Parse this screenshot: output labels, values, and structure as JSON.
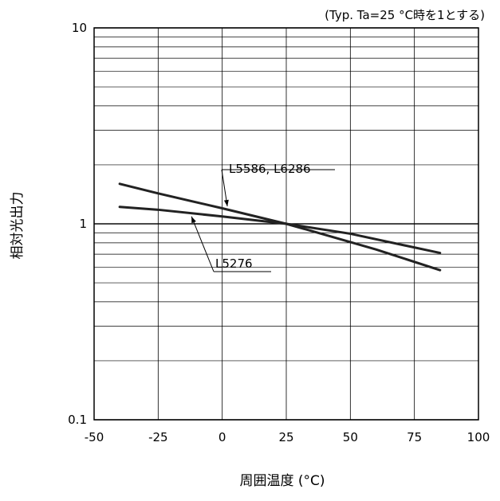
{
  "chart_data": {
    "type": "line",
    "title": "",
    "note": "(Typ. Ta=25 °C時を1とする)",
    "xlabel": "周囲温度 (°C)",
    "ylabel": "相対光出力",
    "xlim": [
      -50,
      100
    ],
    "ylim": [
      0.1,
      10
    ],
    "yscale": "log",
    "grid": true,
    "x_ticks": [
      -50,
      -25,
      0,
      25,
      50,
      75,
      100
    ],
    "x_tick_labels": [
      "-50",
      "-25",
      "0",
      "25",
      "50",
      "75",
      "100"
    ],
    "y_ticks": [
      0.1,
      1,
      10
    ],
    "y_tick_labels": [
      "0.1",
      "1",
      "10"
    ],
    "series": [
      {
        "name": "L5586, L6286",
        "color": "#222222",
        "x": [
          -40,
          -25,
          0,
          25,
          40,
          60,
          85
        ],
        "y": [
          1.6,
          1.43,
          1.2,
          1.0,
          0.88,
          0.74,
          0.58
        ]
      },
      {
        "name": "L5276",
        "color": "#222222",
        "x": [
          -40,
          -25,
          0,
          25,
          50,
          85
        ],
        "y": [
          1.22,
          1.18,
          1.09,
          1.0,
          0.89,
          0.71
        ]
      }
    ]
  }
}
